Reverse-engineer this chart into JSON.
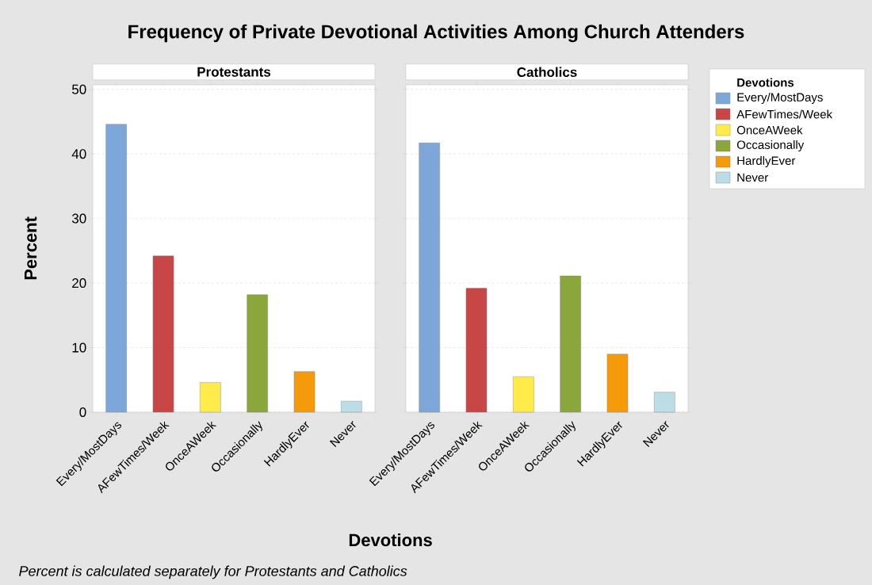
{
  "chart_data": [
    {
      "type": "bar",
      "title": "Frequency of Private Devotional Activities Among Church Attenders",
      "subtitle": "Protestants",
      "xlabel": "Devotions",
      "ylabel": "Percent",
      "annotations": [
        "Percent is calculated separately for Protestants and Catholics"
      ],
      "categories": [
        "Every/MostDays",
        "AFewTimes/Week",
        "OnceAWeek",
        "Occasionally",
        "HardlyEver",
        "Never"
      ],
      "stacked": true,
      "series": [
        {
          "color": "#7da7d9",
          "values": [
            44.6,
            null,
            null,
            null,
            null,
            null
          ]
        },
        {
          "color": "#c84646",
          "values": [
            null,
            24.2,
            null,
            null,
            null,
            null
          ]
        },
        {
          "color": "#ffeb4a",
          "values": [
            null,
            null,
            4.6,
            null,
            null,
            null
          ]
        },
        {
          "color": "#8ba63a",
          "values": [
            null,
            null,
            null,
            18.2,
            null,
            null
          ]
        },
        {
          "color": "#f59a0a",
          "values": [
            null,
            null,
            null,
            null,
            6.3,
            null
          ]
        },
        {
          "color": "#bcdde6",
          "values": [
            null,
            null,
            null,
            null,
            null,
            1.7
          ]
        }
      ],
      "ylim": [
        0,
        50.7
      ],
      "yticks": [
        0,
        10,
        20,
        30,
        40,
        50
      ],
      "grid": "y"
    },
    {
      "type": "bar",
      "subtitle": "Catholics",
      "legend_title": "Devotions",
      "legend": "right",
      "categories": [
        "Every/MostDays",
        "AFewTimes/Week",
        "OnceAWeek",
        "Occasionally",
        "HardlyEver",
        "Never"
      ],
      "stacked": true,
      "series": [
        {
          "name": "Every/MostDays",
          "color": "#7da7d9",
          "values": [
            41.7,
            null,
            null,
            null,
            null,
            null
          ]
        },
        {
          "name": "AFewTimes/Week",
          "color": "#c84646",
          "values": [
            null,
            19.2,
            null,
            null,
            null,
            null
          ]
        },
        {
          "name": "OnceAWeek",
          "color": "#ffeb4a",
          "values": [
            null,
            null,
            5.5,
            null,
            null,
            null
          ]
        },
        {
          "name": "Occasionally",
          "color": "#8ba63a",
          "values": [
            null,
            null,
            null,
            21.1,
            null,
            null
          ]
        },
        {
          "name": "HardlyEver",
          "color": "#f59a0a",
          "values": [
            null,
            null,
            null,
            null,
            9.0,
            null
          ]
        },
        {
          "name": "Never",
          "color": "#bcdde6",
          "values": [
            null,
            null,
            null,
            null,
            null,
            3.1
          ]
        }
      ],
      "ylim": [
        0,
        50.7
      ],
      "yticks": [
        0,
        10,
        20,
        30,
        40,
        50
      ],
      "grid": "y",
      "tick_labels": "x"
    }
  ]
}
